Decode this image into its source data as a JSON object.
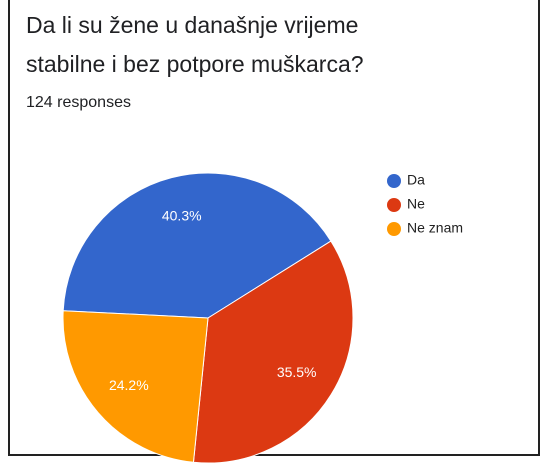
{
  "chart_data": {
    "type": "pie",
    "title": "Da li su žene u današnje vrijeme stabilne i bez potpore muškarca?",
    "subtitle": "124 responses",
    "categories": [
      "Da",
      "Ne",
      "Ne znam"
    ],
    "values": [
      40.3,
      35.5,
      24.2
    ],
    "value_labels": [
      "40.3%",
      "35.5%",
      "24.2%"
    ],
    "colors": [
      "#3366cc",
      "#dc3912",
      "#ff9900"
    ],
    "legend": "right"
  }
}
